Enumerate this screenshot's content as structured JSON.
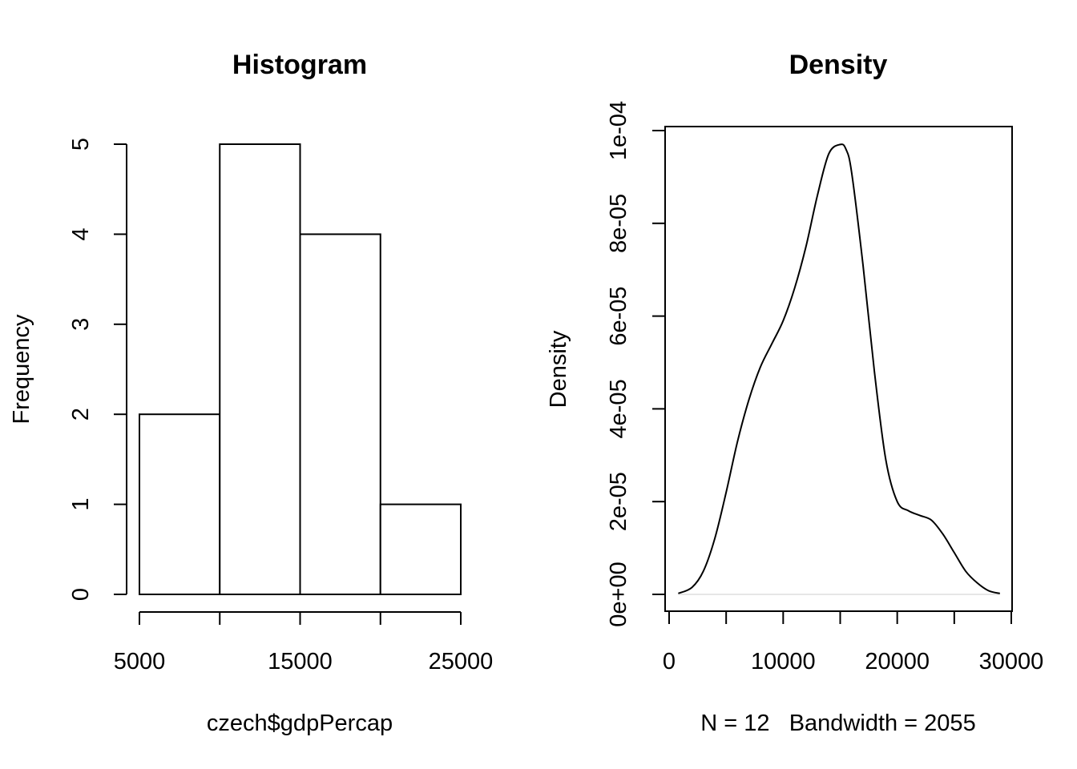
{
  "chart_data": [
    {
      "type": "bar",
      "title": "Histogram",
      "xlabel": "czech$gdpPercap",
      "ylabel": "Frequency",
      "bins": [
        {
          "from": 5000,
          "to": 10000,
          "count": 2
        },
        {
          "from": 10000,
          "to": 15000,
          "count": 5
        },
        {
          "from": 15000,
          "to": 20000,
          "count": 4
        },
        {
          "from": 20000,
          "to": 25000,
          "count": 1
        }
      ],
      "xlim": [
        5000,
        25000
      ],
      "ylim": [
        0,
        5
      ],
      "x_ticks": [
        5000,
        10000,
        15000,
        20000,
        25000
      ],
      "x_tick_labels": [
        {
          "value": 5000,
          "label": "5000"
        },
        {
          "value": 15000,
          "label": "15000"
        },
        {
          "value": 25000,
          "label": "25000"
        }
      ],
      "y_ticks": [
        0,
        1,
        2,
        3,
        4,
        5
      ],
      "y_tick_labels": [
        "0",
        "1",
        "2",
        "3",
        "4",
        "5"
      ]
    },
    {
      "type": "line",
      "title": "Density",
      "xlabel": "N = 12   Bandwidth = 2055",
      "ylabel": "Density",
      "x": [
        800,
        2000,
        3000,
        4000,
        5000,
        6000,
        7000,
        8000,
        9000,
        10000,
        11000,
        12000,
        13000,
        14000,
        15000,
        15500,
        16000,
        17000,
        18000,
        19000,
        20000,
        21000,
        22000,
        23000,
        24000,
        25000,
        26000,
        27000,
        28000,
        29000
      ],
      "y": [
        2e-07,
        1.5e-06,
        5e-06,
        1.2e-05,
        2.2e-05,
        3.3e-05,
        4.2e-05,
        4.9e-05,
        5.4e-05,
        5.9e-05,
        6.6e-05,
        7.5e-05,
        8.6e-05,
        9.5e-05,
        9.7e-05,
        9.6e-05,
        9.1e-05,
        7.1e-05,
        4.8e-05,
        2.9e-05,
        2e-05,
        1.8e-05,
        1.7e-05,
        1.6e-05,
        1.3e-05,
        9e-06,
        5e-06,
        2.5e-06,
        8e-07,
        2e-07
      ],
      "xlim": [
        0,
        30000
      ],
      "ylim": [
        0,
        0.0001
      ],
      "x_ticks": [
        0,
        5000,
        10000,
        15000,
        20000,
        25000,
        30000
      ],
      "x_tick_labels": [
        {
          "value": 0,
          "label": "0"
        },
        {
          "value": 10000,
          "label": "10000"
        },
        {
          "value": 20000,
          "label": "20000"
        },
        {
          "value": 30000,
          "label": "30000"
        }
      ],
      "y_ticks": [
        0,
        2e-05,
        4e-05,
        6e-05,
        8e-05,
        0.0001
      ],
      "y_tick_labels": [
        "0e+00",
        "2e-05",
        "4e-05",
        "6e-05",
        "8e-05",
        "1e-04"
      ]
    }
  ]
}
